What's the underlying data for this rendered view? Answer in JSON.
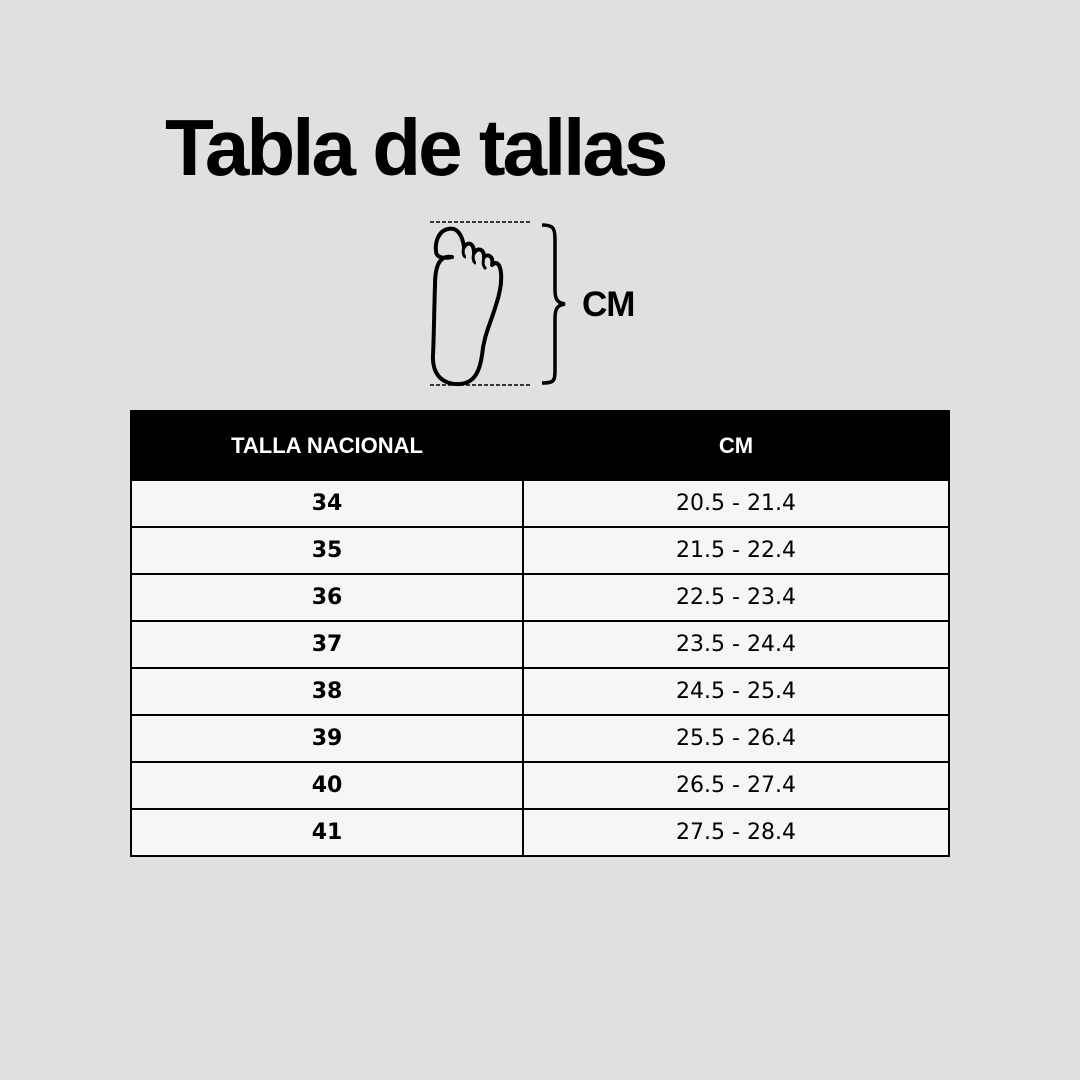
{
  "title": "Tabla de tallas",
  "measure_label": "CM",
  "table": {
    "headers": [
      "TALLA NACIONAL",
      "CM"
    ],
    "rows": [
      {
        "size": "34",
        "cm": "20.5 - 21.4"
      },
      {
        "size": "35",
        "cm": "21.5 - 22.4"
      },
      {
        "size": "36",
        "cm": "22.5 - 23.4"
      },
      {
        "size": "37",
        "cm": "23.5 - 24.4"
      },
      {
        "size": "38",
        "cm": "24.5 - 25.4"
      },
      {
        "size": "39",
        "cm": "25.5 - 26.4"
      },
      {
        "size": "40",
        "cm": "26.5 - 27.4"
      },
      {
        "size": "41",
        "cm": "27.5 - 28.4"
      }
    ]
  },
  "colors": {
    "background": "#e0e0e0",
    "header": "#000000",
    "cell": "#f7f5f6"
  }
}
